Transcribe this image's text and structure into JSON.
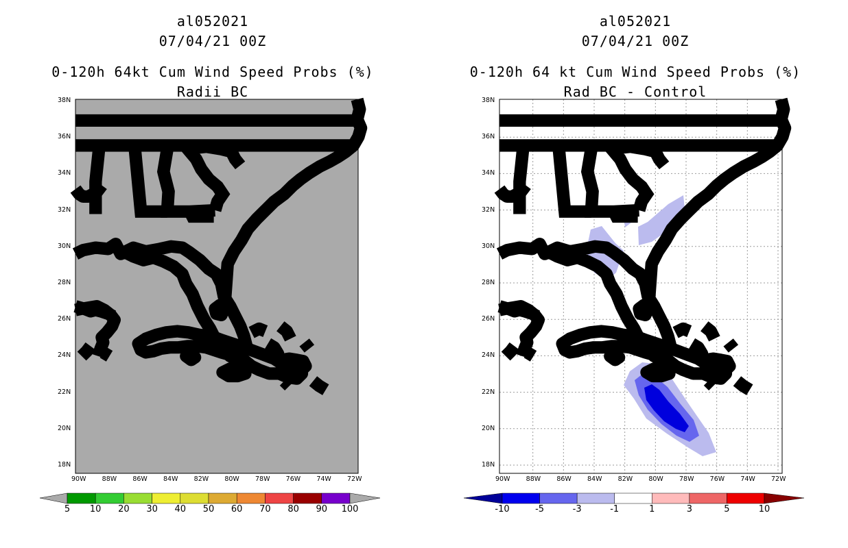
{
  "left": {
    "storm": "al052021",
    "date": "07/04/21 00Z",
    "title": "0-120h 64kt Cum Wind Speed Probs (%)",
    "subtitle": "Radii BC",
    "background": "#aaaaaa",
    "colorbar": {
      "colors": [
        "#009900",
        "#33cc33",
        "#99dd33",
        "#eeee33",
        "#dddd33",
        "#ddaa33",
        "#ee8833",
        "#ee4444",
        "#990000",
        "#7700cc"
      ],
      "end_color": "#aaaaaa",
      "labels": [
        "5",
        "10",
        "20",
        "30",
        "40",
        "50",
        "60",
        "70",
        "80",
        "90",
        "100"
      ]
    }
  },
  "right": {
    "storm": "al052021",
    "date": "07/04/21 00Z",
    "title": "0-120h 64 kt Cum Wind Speed Probs (%)",
    "subtitle": "Rad BC - Control",
    "background": "#ffffff",
    "colorbar": {
      "colors": [
        "#0000ee",
        "#6666ee",
        "#bbbbee",
        "#ffffff",
        "#ffbbbb",
        "#ee6666",
        "#ee0000"
      ],
      "left_end_color": "#000099",
      "right_end_color": "#880000",
      "labels": [
        "-10",
        "-5",
        "-3",
        "-1",
        "1",
        "3",
        "5",
        "10"
      ]
    }
  },
  "axes": {
    "lat_labels": [
      "38N",
      "36N",
      "34N",
      "32N",
      "30N",
      "28N",
      "26N",
      "24N",
      "22N",
      "20N",
      "18N"
    ],
    "lon_labels": [
      "90W",
      "88W",
      "86W",
      "84W",
      "82W",
      "80W",
      "78W",
      "76W",
      "74W",
      "72W"
    ]
  }
}
